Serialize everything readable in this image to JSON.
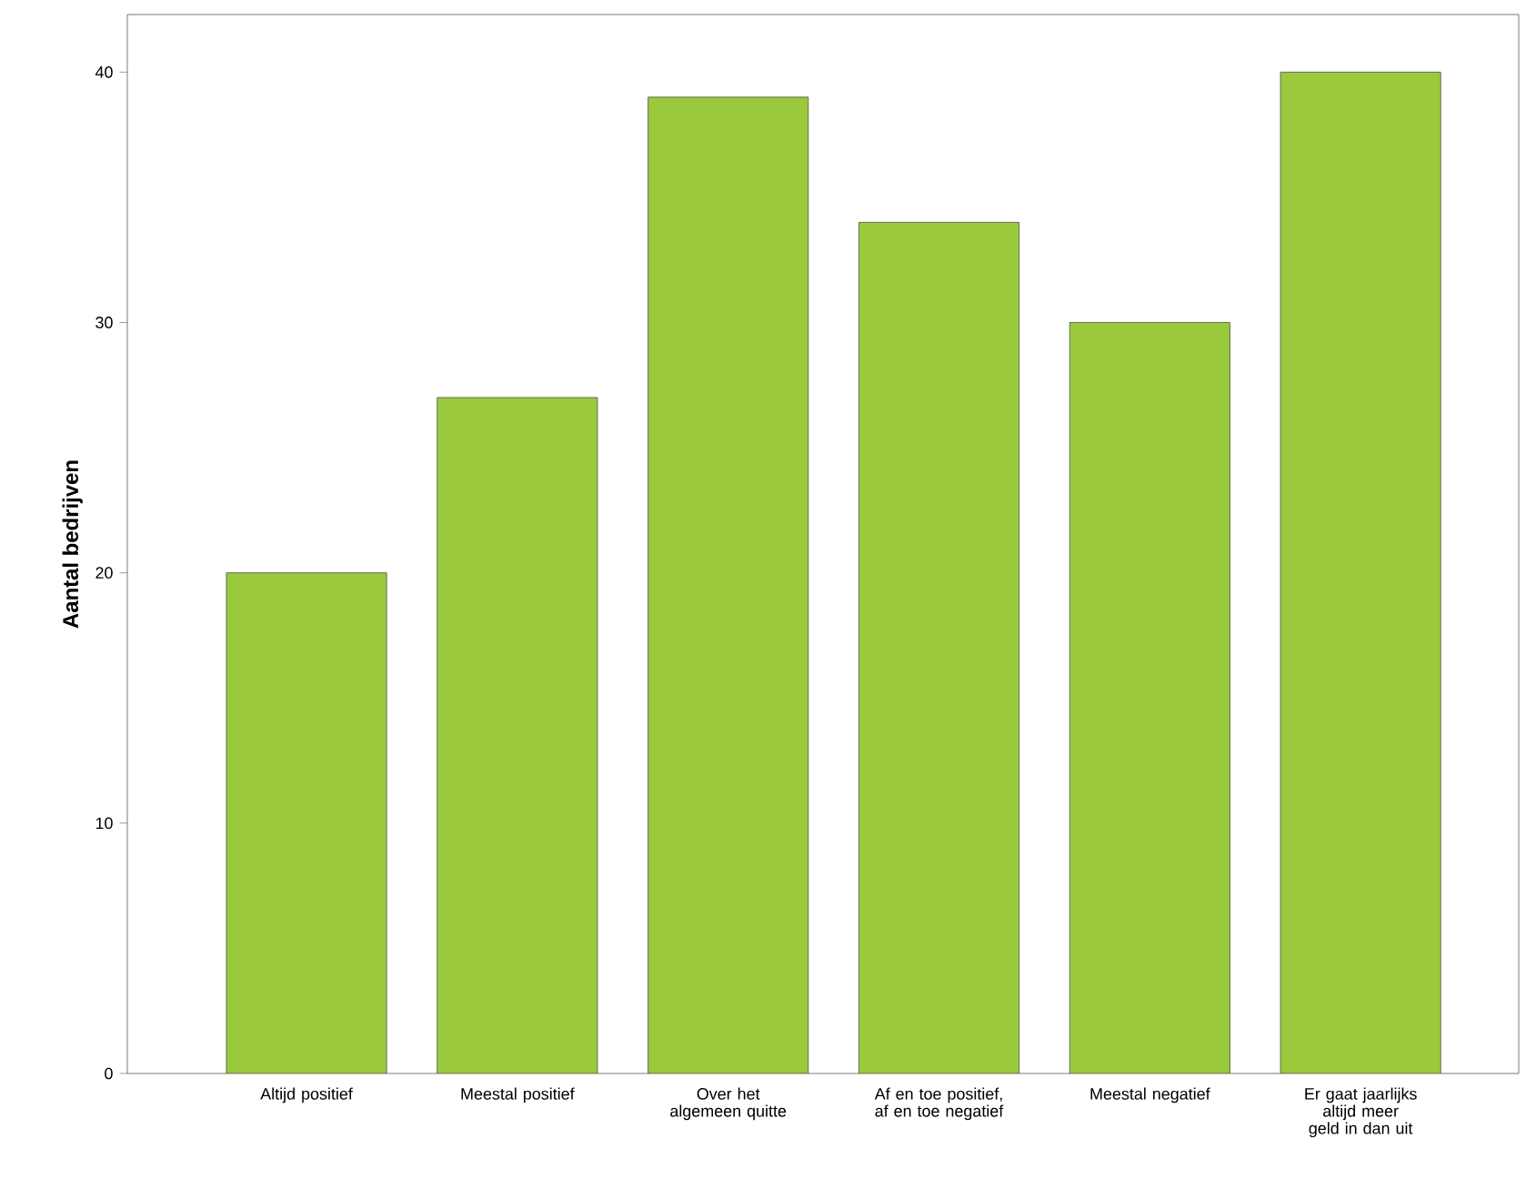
{
  "chart_data": {
    "type": "bar",
    "ylabel": "Aantal bedrijven",
    "categories": [
      "Altijd positief",
      "Meestal positief",
      "Over het algemeen quitte",
      "Af en toe positief, af en toe negatief",
      "Meestal negatief",
      "Er gaat jaarlijks altijd meer geld in dan uit"
    ],
    "values": [
      20,
      27,
      39,
      34,
      30,
      40
    ],
    "color": "#9aca3c",
    "ylim": [
      0,
      42.3
    ],
    "yticks": [
      0,
      10,
      20,
      30,
      40
    ],
    "grid": false
  }
}
